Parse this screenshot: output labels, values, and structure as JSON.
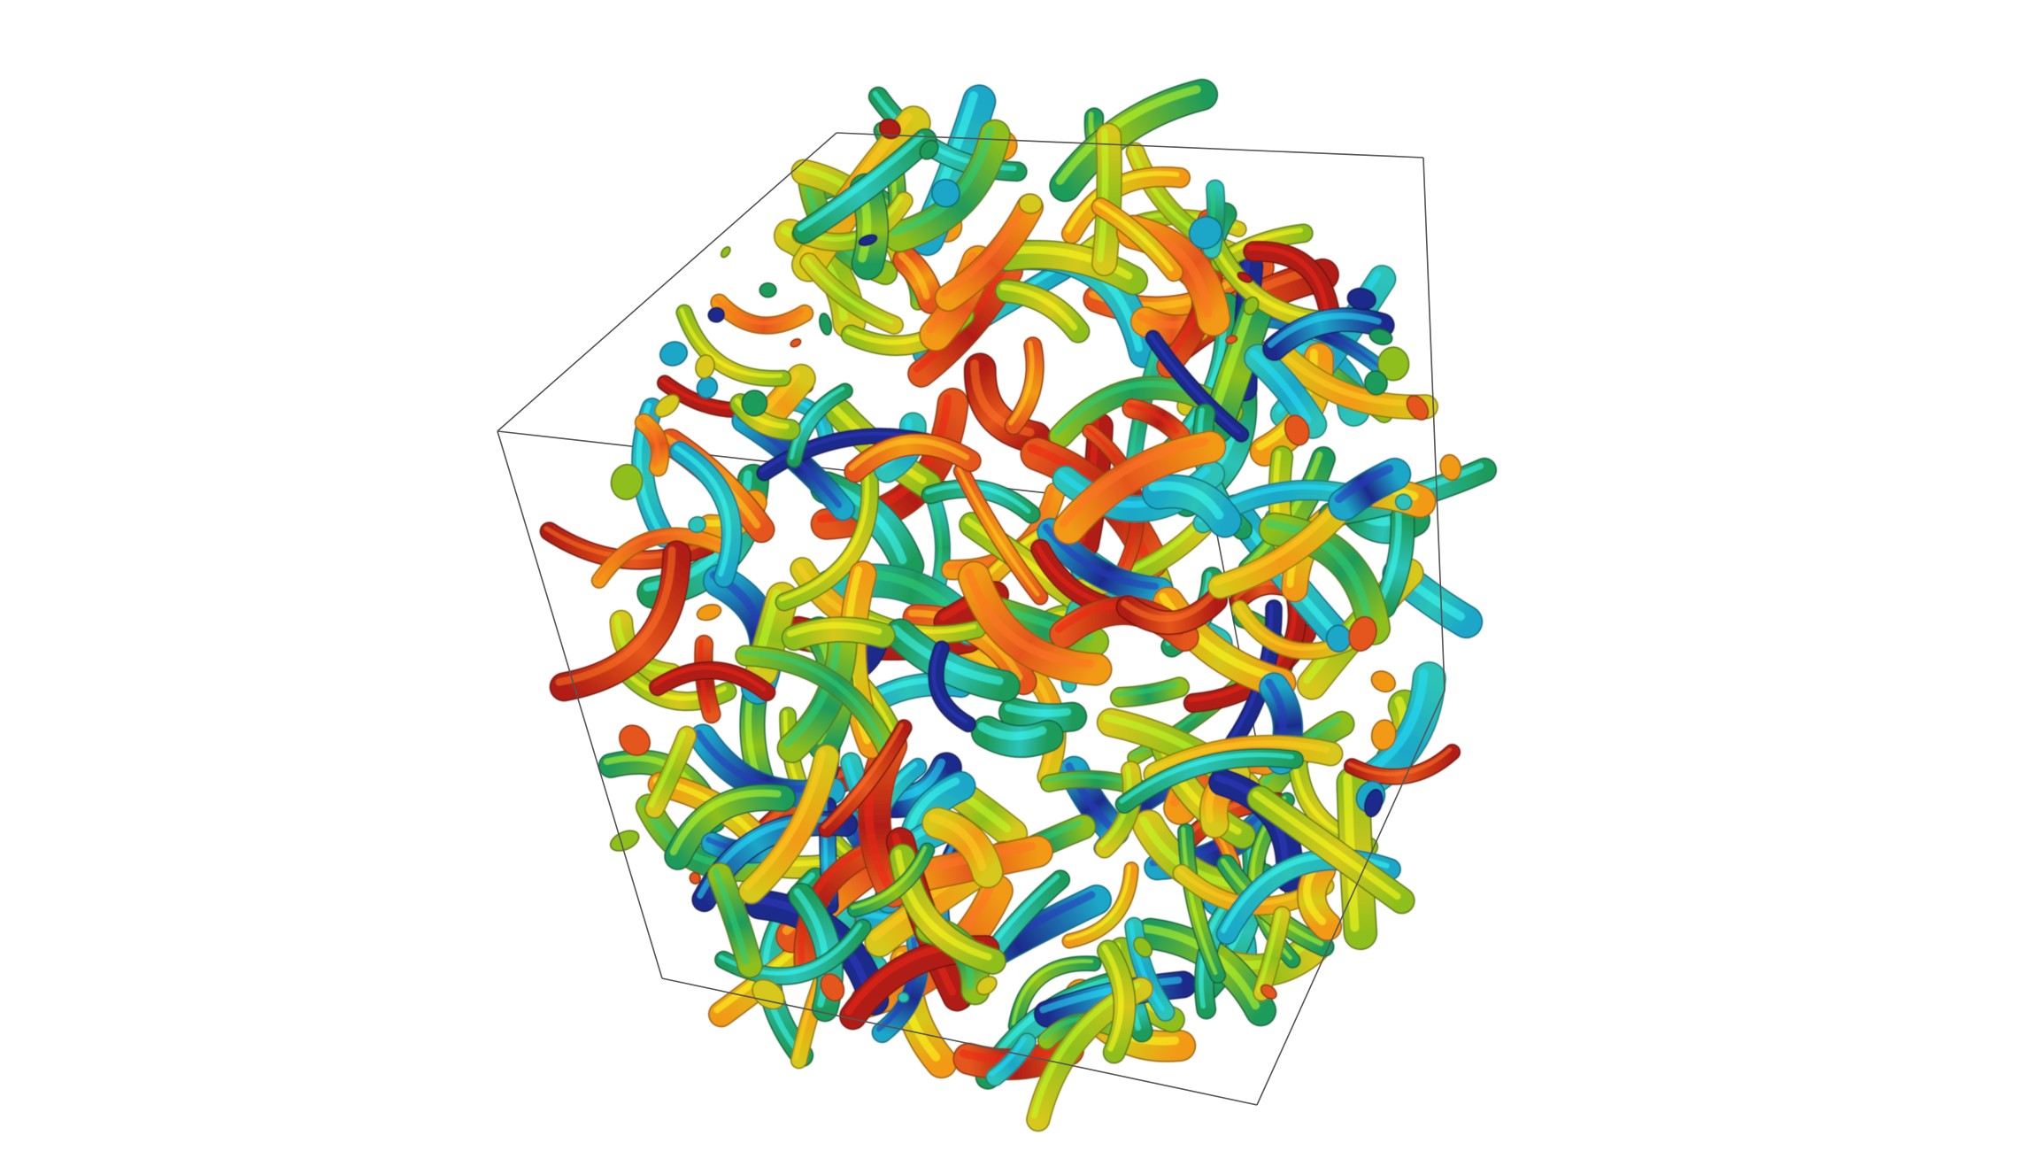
{
  "scene": {
    "subject": "turbulence-vortex-isosurfaces",
    "background_color": "#ffffff",
    "outline_color": "#555555",
    "colormap": [
      "#1f2a8c",
      "#1ba7c8",
      "#2dc3b8",
      "#1f9b5a",
      "#8fbf1d",
      "#d6c81a",
      "#f29a17",
      "#e5561c",
      "#b01d12"
    ],
    "dominant_colors": {
      "cyan": "#20b4c9",
      "teal": "#1a9c8a",
      "green": "#2f9e3a",
      "yellow_green": "#a9c41c",
      "yellow": "#e0c520",
      "orange": "#f08a1c",
      "red": "#c72a14",
      "navy": "#15206e"
    }
  }
}
